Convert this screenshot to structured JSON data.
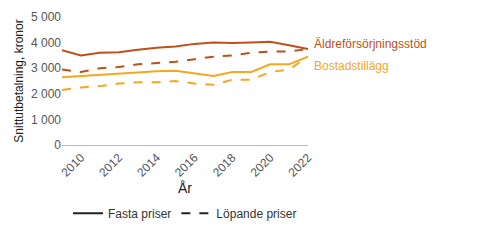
{
  "chart_data": {
    "type": "line",
    "x_label": "År",
    "y_label": "Snittutbetalning, kronor",
    "x": [
      2009,
      2010,
      2011,
      2012,
      2013,
      2014,
      2015,
      2016,
      2017,
      2018,
      2019,
      2020,
      2021,
      2022
    ],
    "xlim": [
      2009,
      2022
    ],
    "xticks": [
      2010,
      2012,
      2014,
      2016,
      2018,
      2020,
      2022
    ],
    "ylim": [
      0,
      5000
    ],
    "yticks": [
      0,
      {
        "value": 1000,
        "label": "1 000"
      },
      {
        "value": 2000,
        "label": "2 000"
      },
      {
        "value": 3000,
        "label": "3 000"
      },
      {
        "value": 4000,
        "label": "4 000"
      },
      {
        "value": 5000,
        "label": "5 000"
      }
    ],
    "grid": false,
    "legend": "bottom",
    "groups": [
      {
        "label": "Äldreförsörjningsstöd",
        "color": "#c0501a",
        "series": [
          {
            "name": "Fasta priser",
            "line_style": "solid",
            "values": [
              3700,
              3500,
              3600,
              3620,
              3720,
              3800,
              3850,
              3950,
              4000,
              3980,
              4000,
              4030,
              3900,
              3750
            ]
          },
          {
            "name": "Löpande priser",
            "line_style": "dashed",
            "values": [
              2950,
              2850,
              3000,
              3050,
              3150,
              3200,
              3250,
              3350,
              3450,
              3500,
              3600,
              3650,
              3650,
              3750
            ]
          }
        ]
      },
      {
        "label": "Bostadstillägg",
        "color": "#f5a81c",
        "series": [
          {
            "name": "Fasta priser",
            "line_style": "solid",
            "values": [
              2650,
              2700,
              2750,
              2800,
              2850,
              2880,
              2900,
              2800,
              2700,
              2850,
              2850,
              3150,
              3150,
              3450
            ]
          },
          {
            "name": "Löpande priser",
            "line_style": "dashed",
            "values": [
              2150,
              2250,
              2300,
              2400,
              2450,
              2450,
              2500,
              2400,
              2350,
              2550,
              2550,
              2850,
              2950,
              3450
            ]
          }
        ]
      }
    ]
  }
}
